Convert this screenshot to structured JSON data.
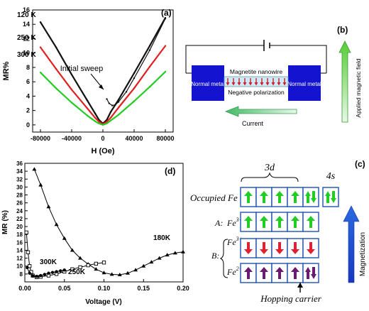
{
  "panel_labels": {
    "a": "(a)",
    "b": "(b)",
    "c": "(c)",
    "d": "(d)"
  },
  "panel_a": {
    "ylabel": "MR%",
    "xlabel": "H (Oe)",
    "annotation": "Initial sweep",
    "chart_data": {
      "type": "line",
      "xlim": [
        -90000,
        90000
      ],
      "ylim": [
        -1,
        16
      ],
      "x_ticks": [
        -80000,
        -40000,
        0,
        40000,
        80000
      ],
      "y_ticks": [
        0,
        2,
        4,
        6,
        8,
        10,
        12,
        14,
        16
      ],
      "x_tick_labels": [
        "-80000",
        "-40000",
        "0",
        "40000",
        "80000"
      ],
      "y_tick_labels": [
        "0",
        "2",
        "4",
        "6",
        "8",
        "10",
        "12",
        "14",
        "16"
      ],
      "series": [
        {
          "name": "120 K",
          "color": "#111111",
          "x": [
            -80000,
            -60000,
            -40000,
            -20000,
            -10000,
            -5000,
            0,
            5000,
            10000,
            20000,
            40000,
            60000,
            80000
          ],
          "y": [
            14.3,
            10.8,
            7.0,
            3.4,
            1.6,
            0.7,
            0.2,
            0.7,
            1.8,
            3.5,
            7.2,
            11.0,
            14.9
          ]
        },
        {
          "name": "250 K",
          "color": "#e02020",
          "x": [
            -80000,
            -60000,
            -40000,
            -20000,
            -10000,
            -5000,
            0,
            5000,
            10000,
            20000,
            40000,
            60000,
            80000
          ],
          "y": [
            10.8,
            7.8,
            4.9,
            2.3,
            1.0,
            0.45,
            0.1,
            0.45,
            1.0,
            2.4,
            5.1,
            8.1,
            11.0
          ]
        },
        {
          "name": "300 K",
          "color": "#22cc22",
          "x": [
            -80000,
            -60000,
            -40000,
            -20000,
            -10000,
            -5000,
            0,
            5000,
            10000,
            20000,
            40000,
            60000,
            80000
          ],
          "y": [
            7.3,
            5.1,
            3.1,
            1.3,
            0.5,
            0.2,
            0.0,
            0.2,
            0.6,
            1.4,
            3.3,
            5.3,
            7.4
          ]
        },
        {
          "name": "",
          "color": "#111111",
          "x": [
            5000,
            8000,
            12000,
            16000,
            20000,
            30000,
            40000,
            60000,
            80000
          ],
          "y": [
            3.6,
            3.0,
            2.7,
            2.8,
            3.2,
            4.6,
            6.5,
            10.4,
            14.8
          ]
        }
      ]
    }
  },
  "panel_b": {
    "left_block": "Normal metal",
    "right_block": "Normal metal",
    "wire_label": "Magnetite nanowire",
    "polarization_label": "Negative polarization",
    "current_label": "Current",
    "field_label": "Applied magnetic field"
  },
  "panel_c": {
    "orbital_3d": "3d",
    "orbital_4s": "4s",
    "rows": [
      {
        "label": "Occupied Fe",
        "prefix": "",
        "ion": "",
        "cells": [
          "up-green",
          "up-green",
          "up-green",
          "up-green",
          "updown-green"
        ],
        "s_cell": "updown-green"
      },
      {
        "label": "",
        "prefix": "A:",
        "ion": "Fe3+",
        "cells": [
          "up-green",
          "up-green",
          "up-green",
          "up-green",
          "up-green"
        ]
      },
      {
        "label": "",
        "prefix": "B:",
        "ion": "Fe3+",
        "cells": [
          "down-red",
          "down-red",
          "down-red",
          "down-red",
          "down-red"
        ]
      },
      {
        "label": "",
        "prefix": "",
        "ion": "Fe2+",
        "cells": [
          "up-purple",
          "up-purple",
          "up-purple",
          "up-purple",
          "updown-purple"
        ]
      }
    ],
    "magnetization_label": "Magnetization",
    "hopping_label": "Hopping carrier"
  },
  "panel_d": {
    "ylabel": "MR (%)",
    "xlabel": "Voltage (V)",
    "chart_data": {
      "type": "scatter",
      "xlim": [
        0.0,
        0.2
      ],
      "ylim": [
        6,
        36
      ],
      "x_ticks": [
        0.0,
        0.05,
        0.1,
        0.15,
        0.2
      ],
      "y_ticks": [
        8,
        10,
        12,
        14,
        16,
        18,
        20,
        22,
        24,
        26,
        28,
        30,
        32,
        34,
        36
      ],
      "x_tick_labels": [
        "0.00",
        "0.05",
        "0.10",
        "0.15",
        "0.20"
      ],
      "y_tick_labels": [
        "8",
        "10",
        "12",
        "14",
        "16",
        "18",
        "20",
        "22",
        "24",
        "26",
        "28",
        "30",
        "32",
        "34",
        "36"
      ],
      "series": [
        {
          "name": "180K",
          "marker": "triangle",
          "x": [
            0.012,
            0.02,
            0.03,
            0.04,
            0.05,
            0.06,
            0.07,
            0.08,
            0.09,
            0.1,
            0.11,
            0.12,
            0.13,
            0.14,
            0.15,
            0.16,
            0.17,
            0.18,
            0.19,
            0.2
          ],
          "y": [
            34.5,
            30.5,
            25.0,
            20.5,
            17.0,
            14.0,
            12.0,
            10.5,
            9.2,
            8.3,
            7.9,
            7.8,
            8.2,
            9.0,
            10.0,
            11.0,
            12.0,
            12.8,
            13.3,
            13.6
          ]
        },
        {
          "name": "250K",
          "marker": "square-open",
          "x": [
            0.002,
            0.004,
            0.006,
            0.008,
            0.01,
            0.015,
            0.02,
            0.03,
            0.04,
            0.05,
            0.06,
            0.07,
            0.08,
            0.09,
            0.1
          ],
          "y": [
            18.5,
            13.5,
            10.0,
            8.5,
            7.6,
            7.2,
            7.3,
            7.6,
            8.0,
            8.6,
            9.2,
            9.7,
            10.2,
            10.6,
            10.9
          ]
        },
        {
          "name": "300K",
          "marker": "circle",
          "x": [
            0.003,
            0.006,
            0.01,
            0.015,
            0.02,
            0.025,
            0.03,
            0.035,
            0.04,
            0.045,
            0.05
          ],
          "y": [
            9.6,
            8.2,
            7.5,
            7.4,
            7.6,
            7.9,
            8.2,
            8.4,
            8.6,
            8.8,
            9.0
          ]
        }
      ]
    }
  }
}
